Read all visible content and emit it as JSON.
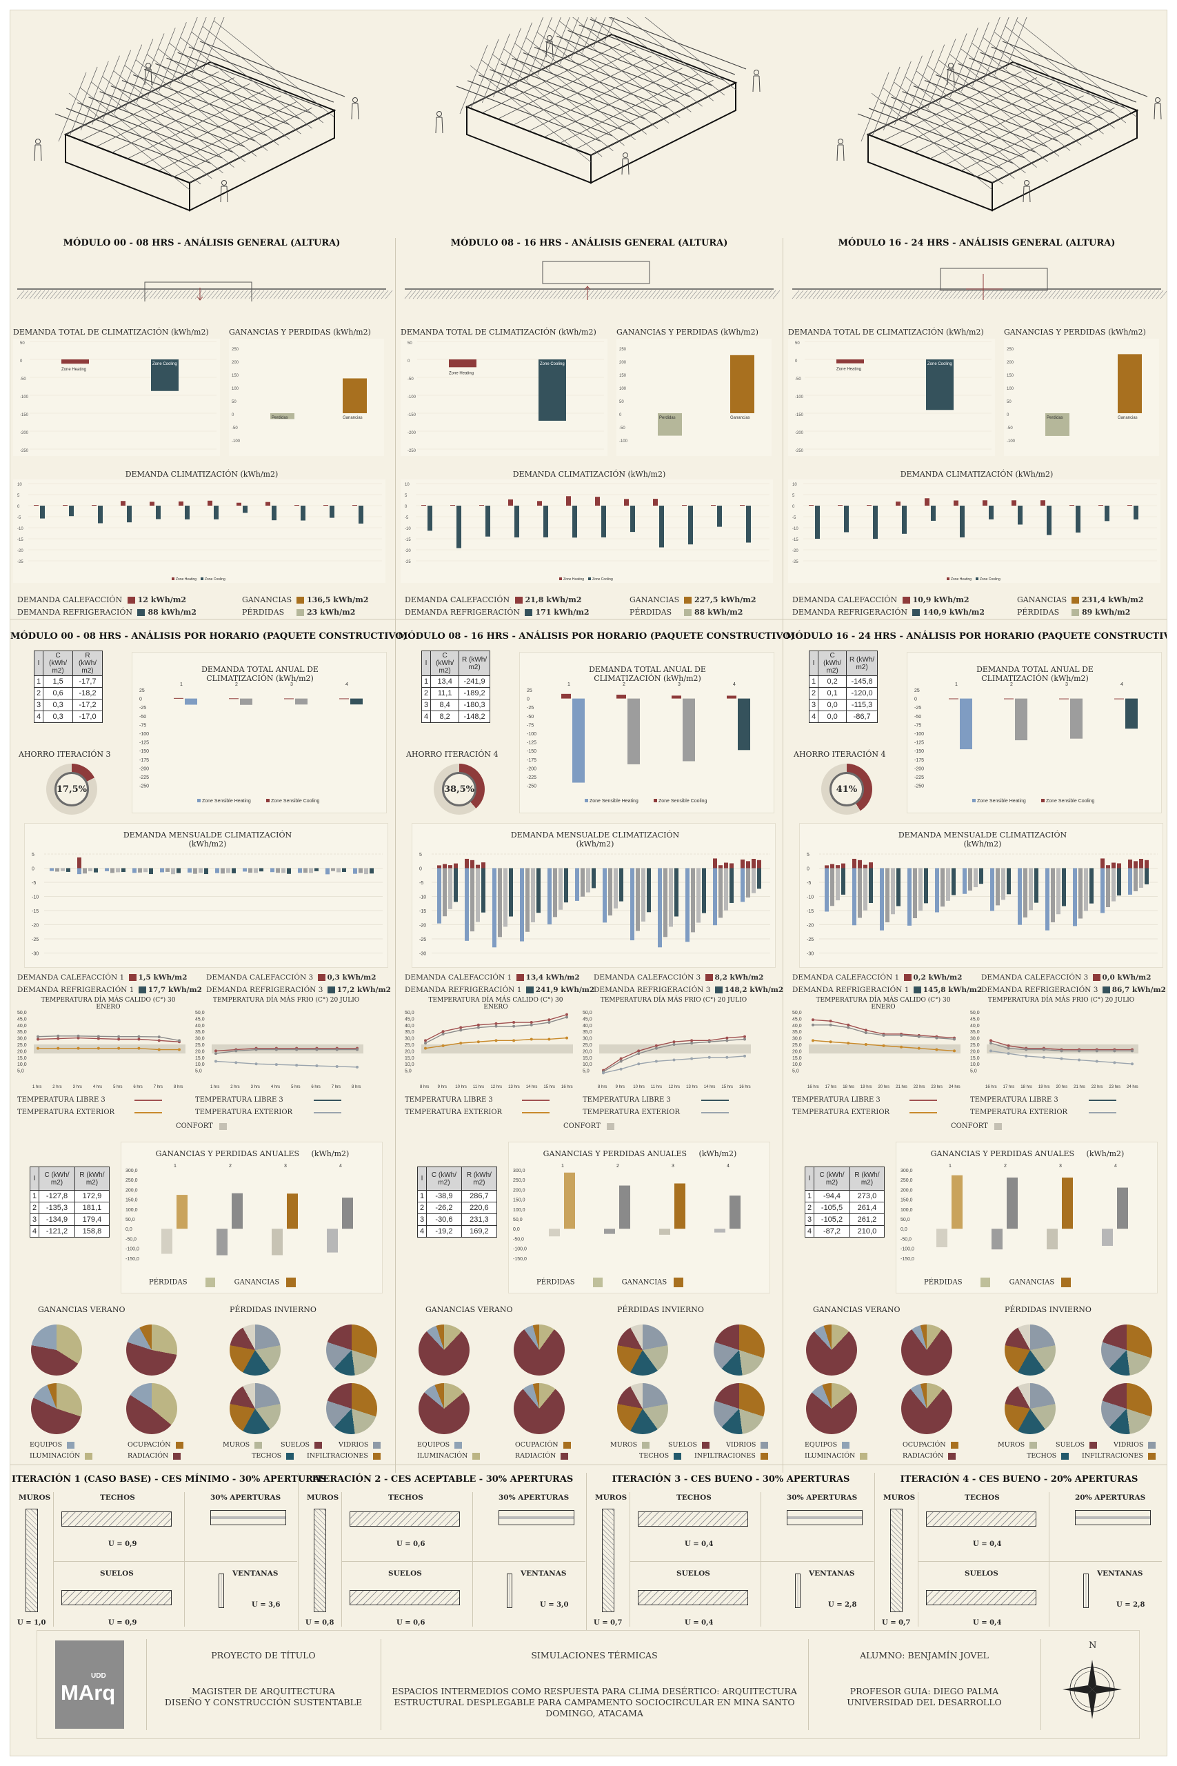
{
  "columns": [
    {
      "general_title": "MÓDULO 00 - 08 HRS - ANÁLISIS GENERAL (ALTURA)",
      "horario_title": "MÓDULO 00 - 08 HRS - ANÁLISIS POR HORARIO (PAQUETE CONSTRUCTIVO)",
      "dem_calefaccion": "12 kWh/m2",
      "dem_refrigeracion": "88 kWh/m2",
      "ganancias": "136,5 kWh/m2",
      "perdidas": "23 kWh/m2",
      "ahorro_label": "AHORRO ITERACIÓN 3",
      "ahorro_value": "17,5%",
      "ahorro_fraction": 0.175,
      "calef1": "1,5 kWh/m2",
      "refrig1": "17,7 kWh/m2",
      "calef3": "0,3 kWh/m2",
      "refrig3": "17,2 kWh/m2",
      "temp_hot_title": "TEMPERATURA DÍA MÁS CALIDO (C°) 30 ENERO",
      "temp_cold_title": "TEMPERATURA DÍA MÁS FRIO (C°) 20 JULIO",
      "hours": [
        "1 hrs",
        "2 hrs",
        "3 hrs",
        "4 hrs",
        "5 hrs",
        "6 hrs",
        "7 hrs",
        "8 hrs"
      ],
      "demand_table": [
        [
          "1",
          "1,5",
          "-17,7"
        ],
        [
          "2",
          "0,6",
          "-18,2"
        ],
        [
          "3",
          "0,3",
          "-17,2"
        ],
        [
          "4",
          "0,3",
          "-17,0"
        ]
      ],
      "gp_table": [
        [
          "1",
          "-127,8",
          "172,9"
        ],
        [
          "2",
          "-135,3",
          "181,1"
        ],
        [
          "3",
          "-134,9",
          "179,4"
        ],
        [
          "4",
          "-121,2",
          "158,8"
        ]
      ]
    },
    {
      "general_title": "MÓDULO 08 - 16 HRS - ANÁLISIS GENERAL (ALTURA)",
      "horario_title": "MÓDULO 08 - 16 HRS - ANÁLISIS POR HORARIO (PAQUETE CONSTRUCTIVO)",
      "dem_calefaccion": "21,8 kWh/m2",
      "dem_refrigeracion": "171 kWh/m2",
      "ganancias": "227,5 kWh/m2",
      "perdidas": "88 kWh/m2",
      "ahorro_label": "AHORRO ITERACIÓN 4",
      "ahorro_value": "38,5%",
      "ahorro_fraction": 0.385,
      "calef1": "13,4 kWh/m2",
      "refrig1": "241,9 kWh/m2",
      "calef3": "8,2 kWh/m2",
      "refrig3": "148,2 kWh/m2",
      "temp_hot_title": "TEMPERATURA DÍA MÁS CALIDO (C°) 30 ENERO",
      "temp_cold_title": "TEMPERATURA DÍA MÁS FRIO (C°) 20 JULIO",
      "hours": [
        "8 hrs",
        "9 hrs",
        "10 hrs",
        "11 hrs",
        "12 hrs",
        "13 hrs",
        "14 hrs",
        "15 hrs",
        "16 hrs"
      ],
      "demand_table": [
        [
          "1",
          "13,4",
          "-241,9"
        ],
        [
          "2",
          "11,1",
          "-189,2"
        ],
        [
          "3",
          "8,4",
          "-180,3"
        ],
        [
          "4",
          "8,2",
          "-148,2"
        ]
      ],
      "gp_table": [
        [
          "1",
          "-38,9",
          "286,7"
        ],
        [
          "2",
          "-26,2",
          "220,6"
        ],
        [
          "3",
          "-30,6",
          "231,3"
        ],
        [
          "4",
          "-19,2",
          "169,2"
        ]
      ]
    },
    {
      "general_title": "MÓDULO 16 - 24 HRS - ANÁLISIS GENERAL (ALTURA)",
      "horario_title": "MÓDULO 16 - 24 HRS - ANÁLISIS POR HORARIO (PAQUETE CONSTRUCTIVO)",
      "dem_calefaccion": "10,9 kWh/m2",
      "dem_refrigeracion": "140,9 kWh/m2",
      "ganancias": "231,4 kWh/m2",
      "perdidas": "89 kWh/m2",
      "ahorro_label": "AHORRO ITERACIÓN 4",
      "ahorro_value": "41%",
      "ahorro_fraction": 0.41,
      "calef1": "0,2 kWh/m2",
      "refrig1": "145,8 kWh/m2",
      "calef3": "0,0 kWh/m2",
      "refrig3": "86,7 kWh/m2",
      "temp_hot_title": "TEMPERATURA DÍA MÁS CALIDO (C°) 30 ENERO",
      "temp_cold_title": "TEMPERATURA DÍA MÁS FRIO (C°) 20 JULIO",
      "hours": [
        "16 hrs",
        "17 hrs",
        "18 hrs",
        "19 hrs",
        "20 hrs",
        "21 hrs",
        "22 hrs",
        "23 hrs",
        "24 hrs"
      ],
      "demand_table": [
        [
          "1",
          "0,2",
          "-145,8"
        ],
        [
          "2",
          "0,1",
          "-120,0"
        ],
        [
          "3",
          "0,0",
          "-115,3"
        ],
        [
          "4",
          "0,0",
          "-86,7"
        ]
      ],
      "gp_table": [
        [
          "1",
          "-94,4",
          "273,0"
        ],
        [
          "2",
          "-105,5",
          "261,4"
        ],
        [
          "3",
          "-105,2",
          "261,2"
        ],
        [
          "4",
          "-87,2",
          "210,0"
        ]
      ]
    }
  ],
  "labels": {
    "demanda_total": "DEMANDA TOTAL DE CLIMATIZACIÓN (kWh/m2)",
    "ganancias_perdidas": "GANANCIAS Y PERDIDAS (kWh/m2)",
    "demanda_clim": "DEMANDA CLIMATIZACIÓN (kWh/m2)",
    "demanda_calefaccion": "DEMANDA CALEFACCIÓN",
    "demanda_refrigeracion": "DEMANDA REFRIGERACIÓN",
    "ganancias": "GANANCIAS",
    "perdidas": "PÉRDIDAS",
    "zone_heating": "Zone Heating",
    "zone_cooling": "Zone Cooling",
    "perdidas_bar": "Perdidas",
    "ganancias_bar": "Ganancias",
    "demanda_total_anual": "DEMANDA TOTAL ANUAL DE CLIMATIZACIÓN (kWh/m2)",
    "zone_sensible_heating": "Zone Sensible Heating",
    "zone_sensible_cooling": "Zone Sensible Cooling",
    "demanda_mensual": "DEMANDA MENSUALDE CLIMATIZACIÓN (kWh/m2)",
    "demanda_calefaccion_1": "DEMANDA CALEFACCIÓN 1",
    "demanda_refrigeracion_1": "DEMANDA REFRIGERACIÓN 1",
    "demanda_calefaccion_3": "DEMANDA CALEFACCIÓN 3",
    "demanda_refrigeracion_3": "DEMANDA REFRIGERACIÓN 3",
    "temp_libre_3": "TEMPERATURA LIBRE 3",
    "temp_exterior": "TEMPERATURA EXTERIOR",
    "confort": "CONFORT",
    "gp_anuales": "GANANCIAS Y PERDIDAS ANUALES     (kWh/m2)",
    "gp_anuales_legend_perdidas": "PÉRDIDAS",
    "gp_anuales_legend_ganancias": "GANANCIAS",
    "ganancias_verano": "GANANCIAS VERANO",
    "perdidas_invierno": "PÉRDIDAS INVIERNO",
    "equipos": "EQUIPOS",
    "iluminacion": "ILUMINACIÓN",
    "ocupacion": "OCUPACIÓN",
    "radiacion": "RADIACIÓN",
    "muros": "MUROS",
    "suelos": "SUELOS",
    "vidrios": "VIDRIOS",
    "techos": "TECHOS",
    "infiltraciones": "INFILTRACIONES",
    "table_i": "I",
    "table_c": "C (kWh/ m2)",
    "table_r": "R (kWh/ m2)"
  },
  "iterations": [
    {
      "title": "ITERACIÓN 1 (CASO BASE) - CES MÍNIMO - 30% APERTURAS",
      "aperturas": "30% APERTURAS",
      "u_muros": "U = 1,0",
      "u_techos": "U = 0,9",
      "u_suelos": "U = 0,9",
      "u_ventanas": "U = 3,6"
    },
    {
      "title": "ITERACIÓN 2 - CES ACEPTABLE - 30% APERTURAS",
      "aperturas": "30% APERTURAS",
      "u_muros": "U = 0,8",
      "u_techos": "U = 0,6",
      "u_suelos": "U = 0,6",
      "u_ventanas": "U = 3,0"
    },
    {
      "title": "ITERACIÓN 3 - CES BUENO - 30% APERTURAS",
      "aperturas": "30% APERTURAS",
      "u_muros": "U = 0,7",
      "u_techos": "U = 0,4",
      "u_suelos": "U = 0,4",
      "u_ventanas": "U = 2,8"
    },
    {
      "title": "ITERACIÓN 4 - CES BUENO - 20% APERTURAS",
      "aperturas": "20% APERTURAS",
      "u_muros": "U = 0,7",
      "u_techos": "U = 0,4",
      "u_suelos": "U = 0,4",
      "u_ventanas": "U = 2,8"
    }
  ],
  "iteration_labels": {
    "muros": "MUROS",
    "techos": "TECHOS",
    "suelos": "SUELOS",
    "ventanas": "VENTANAS"
  },
  "footer": {
    "logo_top": "UDD",
    "logo_main": "MArq",
    "proyecto": "PROYECTO DE TÍTULO",
    "magister_1": "MAGISTER DE ARQUITECTURA",
    "magister_2": "DISEÑO Y CONSTRUCCIÓN SUSTENTABLE",
    "simulaciones": "SIMULACIONES TÉRMICAS",
    "tema_1": "ESPACIOS INTERMEDIOS COMO RESPUESTA PARA CLIMA DESÉRTICO: ARQUITECTURA",
    "tema_2": "ESTRUCTURAL DESPLEGABLE PARA CAMPAMENTO SOCIOCIRCULAR EN MINA SANTO",
    "tema_3": "DOMINGO, ATACAMA",
    "alumno": "ALUMNO: BENJAMÍN JOVEL",
    "profesor": "PROFESOR GUIA: DIEGO PALMA",
    "universidad": "UNIVERSIDAD DEL DESARROLLO",
    "north": "N"
  },
  "colors": {
    "heating": "#8e3b3b",
    "cooling": "#35525c",
    "gain": "#a8701f",
    "loss": "#b5b79a",
    "blue": "#7f9cc2",
    "grey": "#9d9d9d",
    "orange": "#c88a2c",
    "teal": "#235a6c",
    "tan": "#bcb584"
  }
}
